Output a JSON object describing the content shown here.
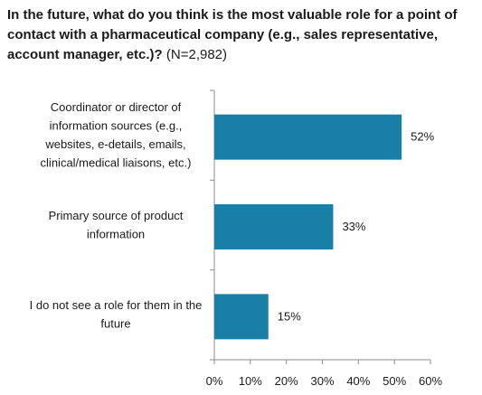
{
  "header": {
    "question": "In the future, what do you think is the most valuable role for a point of contact with a pharmaceutical company (e.g., sales representative, account manager, etc.)?",
    "sample": "(N=2,982)"
  },
  "chart_data": {
    "type": "bar",
    "orientation": "horizontal",
    "categories": [
      [
        "Coordinator or director of",
        "information sources (e.g.,",
        "websites, e-details, emails,",
        "clinical/medical liaisons, etc.)"
      ],
      [
        "Primary source of product",
        "information"
      ],
      [
        "I do not see a role for them in the",
        "future"
      ]
    ],
    "values": [
      52,
      33,
      15
    ],
    "value_labels": [
      "52%",
      "33%",
      "15%"
    ],
    "xlim": [
      0,
      60
    ],
    "xticks": [
      0,
      10,
      20,
      30,
      40,
      50,
      60
    ],
    "xtick_labels": [
      "0%",
      "10%",
      "20%",
      "30%",
      "40%",
      "50%",
      "60%"
    ],
    "grid": false,
    "bar_color": "#1a7fa6",
    "axis_color": "#8c8c8c"
  }
}
